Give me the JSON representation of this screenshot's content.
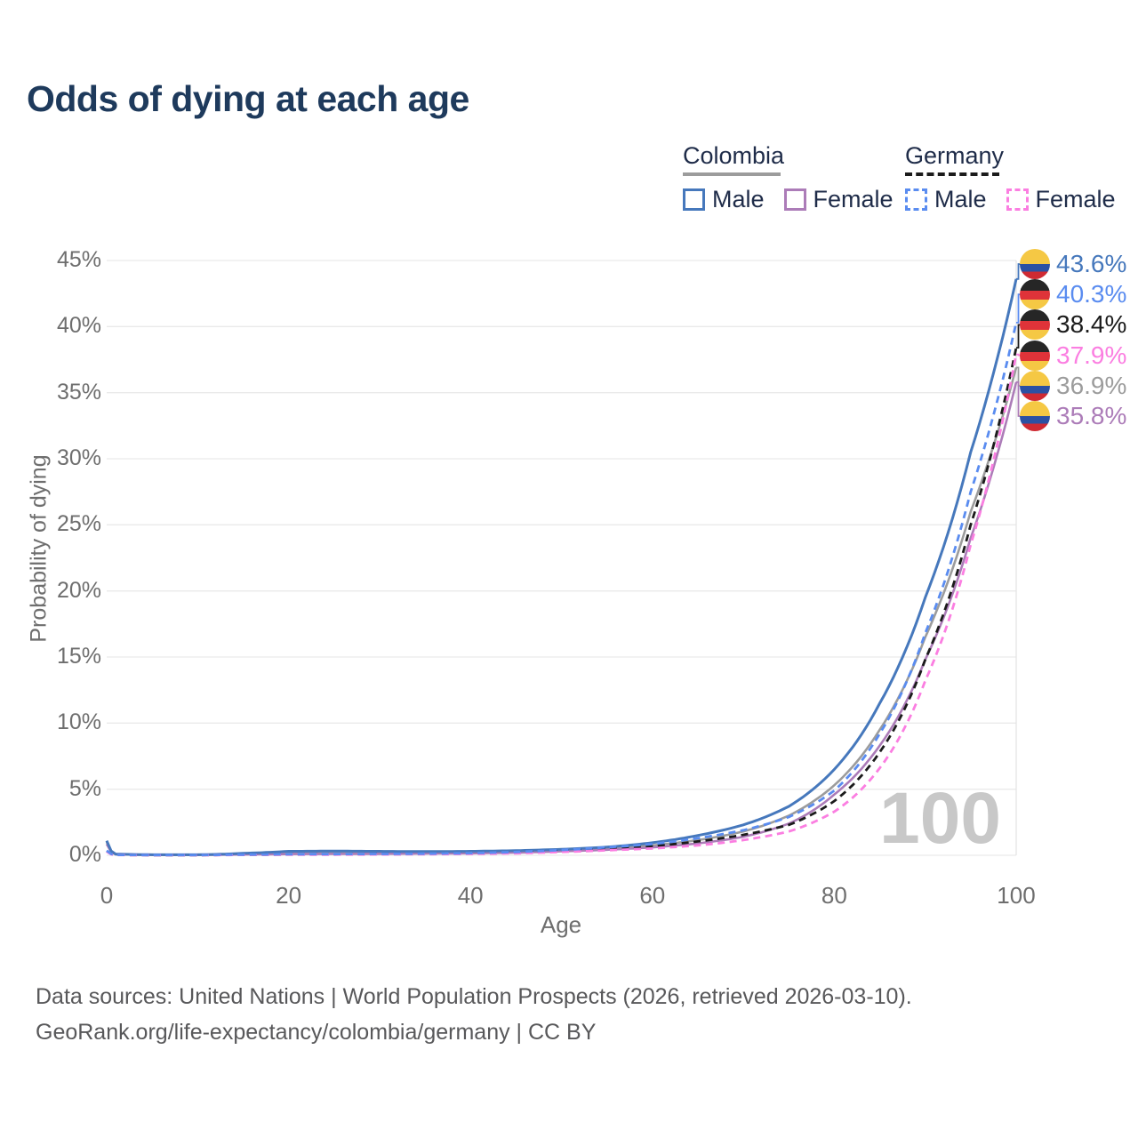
{
  "title": "Odds of dying at each age",
  "watermark_age": "100",
  "legend": {
    "groups": [
      {
        "name": "Colombia",
        "style": "solid",
        "line_color": "#9C9C9C",
        "items": [
          {
            "label": "Male",
            "color": "#4678BC"
          },
          {
            "label": "Female",
            "color": "#AC7CB8"
          }
        ]
      },
      {
        "name": "Germany",
        "style": "dashed",
        "line_color": "#1B1B1B",
        "items": [
          {
            "label": "Male",
            "color": "#5A8CF0"
          },
          {
            "label": "Female",
            "color": "#FB7EE1"
          }
        ]
      }
    ]
  },
  "chart_data": {
    "type": "line",
    "title": "Odds of dying at each age",
    "xlabel": "Age",
    "ylabel": "Probability of dying",
    "xlim": [
      0,
      100
    ],
    "ylim": [
      0,
      45
    ],
    "grid": "horizontal",
    "legend_position": "top-right",
    "x_ticks": [
      {
        "value": 0,
        "label": "0"
      },
      {
        "value": 20,
        "label": "20"
      },
      {
        "value": 40,
        "label": "40"
      },
      {
        "value": 60,
        "label": "60"
      },
      {
        "value": 80,
        "label": "80"
      },
      {
        "value": 100,
        "label": "100"
      }
    ],
    "y_ticks": [
      {
        "value": 0,
        "label": "0%"
      },
      {
        "value": 5,
        "label": "5%"
      },
      {
        "value": 10,
        "label": "10%"
      },
      {
        "value": 15,
        "label": "15%"
      },
      {
        "value": 20,
        "label": "20%"
      },
      {
        "value": 25,
        "label": "25%"
      },
      {
        "value": 30,
        "label": "30%"
      },
      {
        "value": 35,
        "label": "35%"
      },
      {
        "value": 40,
        "label": "40%"
      },
      {
        "value": 45,
        "label": "45%"
      }
    ],
    "ages": [
      0,
      1,
      5,
      10,
      15,
      20,
      25,
      30,
      35,
      40,
      45,
      50,
      55,
      60,
      65,
      70,
      75,
      80,
      85,
      90,
      95,
      100
    ],
    "series": [
      {
        "name": "Colombia Male",
        "country": "Colombia",
        "flag": "colombia",
        "color": "#4678BC",
        "dashed": false,
        "end_label": "43.6%",
        "end_value": 43.6,
        "values": [
          1.1,
          0.09,
          0.04,
          0.04,
          0.15,
          0.3,
          0.32,
          0.3,
          0.28,
          0.3,
          0.35,
          0.45,
          0.62,
          0.95,
          1.5,
          2.3,
          3.7,
          6.5,
          11.5,
          19.5,
          30.5,
          43.6
        ]
      },
      {
        "name": "Germany Male",
        "country": "Germany",
        "flag": "germany",
        "color": "#5A8CF0",
        "dashed": true,
        "end_label": "40.3%",
        "end_value": 40.3,
        "values": [
          0.35,
          0.03,
          0.02,
          0.02,
          0.05,
          0.08,
          0.09,
          0.1,
          0.12,
          0.16,
          0.25,
          0.4,
          0.6,
          0.85,
          1.3,
          1.9,
          2.9,
          4.9,
          9.2,
          16.8,
          27.5,
          40.3
        ]
      },
      {
        "name": "Germany",
        "country": "Germany",
        "flag": "germany",
        "color": "#1B1B1B",
        "dashed": true,
        "end_label": "38.4%",
        "end_value": 38.4,
        "values": [
          0.3,
          0.03,
          0.015,
          0.015,
          0.04,
          0.06,
          0.07,
          0.08,
          0.1,
          0.13,
          0.2,
          0.33,
          0.5,
          0.7,
          1.05,
          1.55,
          2.3,
          4.1,
          7.8,
          14.8,
          25.0,
          38.4
        ]
      },
      {
        "name": "Germany Female",
        "country": "Germany",
        "flag": "germany",
        "color": "#FB7EE1",
        "dashed": true,
        "end_label": "37.9%",
        "end_value": 37.9,
        "values": [
          0.28,
          0.02,
          0.01,
          0.01,
          0.03,
          0.04,
          0.05,
          0.06,
          0.08,
          0.1,
          0.15,
          0.25,
          0.38,
          0.52,
          0.75,
          1.15,
          1.8,
          3.3,
          6.6,
          13.2,
          23.5,
          37.9
        ]
      },
      {
        "name": "Colombia",
        "country": "Colombia",
        "flag": "colombia",
        "color": "#9C9C9C",
        "dashed": false,
        "end_label": "36.9%",
        "end_value": 36.9,
        "values": [
          1.0,
          0.08,
          0.03,
          0.03,
          0.1,
          0.2,
          0.21,
          0.2,
          0.2,
          0.22,
          0.28,
          0.38,
          0.52,
          0.75,
          1.15,
          1.8,
          3.0,
          5.3,
          9.5,
          16.5,
          26.0,
          36.9
        ]
      },
      {
        "name": "Colombia Female",
        "country": "Colombia",
        "flag": "colombia",
        "color": "#AC7CB8",
        "dashed": false,
        "end_label": "35.8%",
        "end_value": 35.8,
        "values": [
          0.85,
          0.07,
          0.03,
          0.03,
          0.06,
          0.09,
          0.1,
          0.11,
          0.13,
          0.15,
          0.2,
          0.3,
          0.42,
          0.6,
          0.9,
          1.4,
          2.4,
          4.6,
          8.3,
          14.8,
          24.0,
          35.8
        ]
      }
    ]
  },
  "flag_colors": {
    "colombia": [
      "#F5C844",
      "#2B51A3",
      "#CF2A33"
    ],
    "germany": [
      "#262626",
      "#DF3339",
      "#F5C844"
    ]
  },
  "footer": {
    "line1": "Data sources: United Nations | World Population Prospects (2026, retrieved 2026-03-10).",
    "line2": "GeoRank.org/life-expectancy/colombia/germany | CC BY"
  }
}
